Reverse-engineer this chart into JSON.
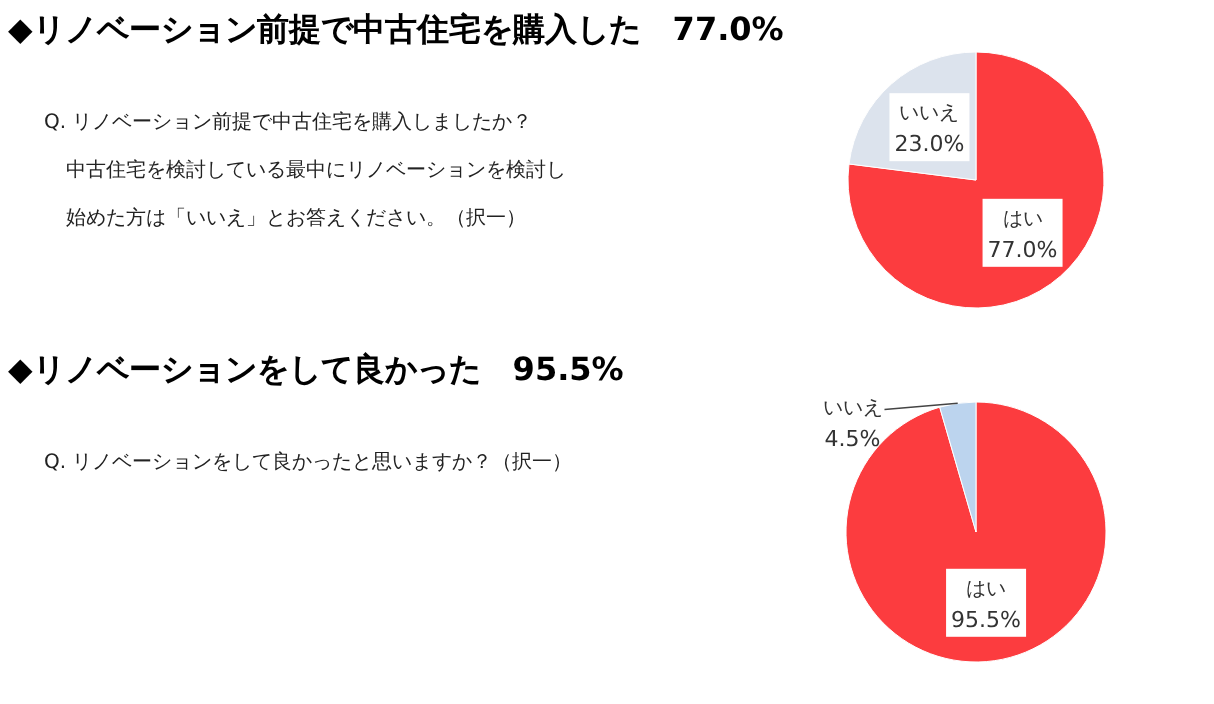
{
  "chart_data": [
    {
      "type": "pie",
      "title": "◆リノベーション前提で中古住宅を購入した　77.0%",
      "annotations": [
        "Q. リノベーション前提で中古住宅を購入しましたか？",
        "中古住宅を検討している最中にリノベーションを検討し",
        "始めた方は「いいえ」とお答えください。（択一）"
      ],
      "categories": [
        "はい",
        "いいえ"
      ],
      "values": [
        77.0,
        23.0
      ],
      "colors": [
        "#fc3c3f",
        "#dce3ed"
      ],
      "value_labels": [
        "77.0%",
        "23.0%"
      ]
    },
    {
      "type": "pie",
      "title": "◆リノベーションをして良かった　95.5%",
      "annotations": [
        "Q. リノベーションをして良かったと思いますか？（択一）"
      ],
      "categories": [
        "はい",
        "いいえ"
      ],
      "values": [
        95.5,
        4.5
      ],
      "colors": [
        "#fc3c3f",
        "#bcd4ee"
      ],
      "value_labels": [
        "95.5%",
        "4.5%"
      ]
    }
  ]
}
